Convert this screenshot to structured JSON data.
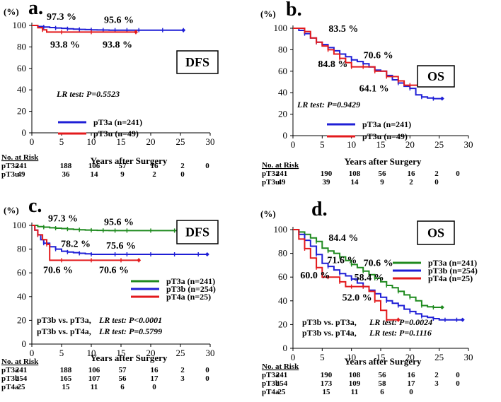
{
  "chart_data": [
    {
      "letter": "a.",
      "type": "line",
      "title": "DFS",
      "ylabel": "(%)",
      "xlabel": "Years after Surgery",
      "xlim": [
        0,
        30
      ],
      "ylim": [
        0,
        100
      ],
      "xticks": [
        "0",
        "5",
        "10",
        "15",
        "20",
        "25",
        "30"
      ],
      "yticks": [
        "0",
        "20",
        "40",
        "60",
        "80",
        "100"
      ],
      "test_note": {
        "lines": [
          {
            "label": "",
            "text": "LR test: P=0.5523"
          }
        ]
      },
      "series": [
        {
          "name": "pT3a (n=241)",
          "color": "#1f1fd6",
          "x": [
            0,
            1,
            2,
            3,
            4,
            5,
            6,
            7,
            8,
            9,
            10,
            11,
            12,
            13,
            14,
            15,
            16,
            17,
            18,
            20,
            22,
            24,
            25.5
          ],
          "y": [
            100,
            99,
            98.5,
            98,
            97.6,
            97.3,
            96.9,
            96.6,
            96.3,
            96.1,
            95.9,
            95.8,
            95.7,
            95.6,
            95.6,
            95.6,
            95.6,
            95.6,
            95.6,
            95.6,
            95.6,
            95.6,
            95.6
          ]
        },
        {
          "name": "pT3u (n=49)",
          "color": "#e31a1c",
          "x": [
            0,
            1,
            1.8,
            2.5,
            5,
            8,
            10,
            15,
            17.5
          ],
          "y": [
            100,
            97.9,
            95.9,
            93.8,
            93.8,
            93.8,
            93.8,
            93.8,
            93.8
          ]
        }
      ],
      "annotations": [
        {
          "text": "97.3 %",
          "x": 5,
          "y": 97.3,
          "dx": 0,
          "dy": -12,
          "color": "#1f1fd6"
        },
        {
          "text": "95.6 %",
          "x": 15,
          "y": 95.6,
          "dx": -3,
          "dy": -10,
          "color": "#1f1fd6"
        },
        {
          "text": "93.8 %",
          "x": 5,
          "y": 93.8,
          "dx": 5,
          "dy": 22,
          "color": "#e31a1c"
        },
        {
          "text": "93.8 %",
          "x": 15,
          "y": 93.8,
          "dx": -5,
          "dy": 22,
          "color": "#e31a1c"
        }
      ],
      "risk_table": {
        "header": "No. at Risk",
        "rows": [
          {
            "label": "pT3a",
            "values": [
              "241",
              "188",
              "106",
              "57",
              "16",
              "2",
              "0"
            ]
          },
          {
            "label": "pT3u",
            "values": [
              "49",
              "36",
              "14",
              "9",
              "2",
              "0"
            ]
          }
        ]
      }
    },
    {
      "letter": "b.",
      "type": "line",
      "title": "OS",
      "ylabel": "(%)",
      "xlabel": "Years after Surgery",
      "xlim": [
        0,
        30
      ],
      "ylim": [
        0,
        100
      ],
      "xticks": [
        "0",
        "5",
        "10",
        "15",
        "20",
        "25",
        "30"
      ],
      "yticks": [
        "0",
        "20",
        "40",
        "60",
        "80",
        "100"
      ],
      "test_note": {
        "lines": [
          {
            "label": "",
            "text": "LR test: P=0.9429"
          }
        ]
      },
      "series": [
        {
          "name": "pT3a (n=241)",
          "color": "#1f1fd6",
          "x": [
            0,
            1,
            2,
            3,
            4,
            5,
            6,
            7,
            8,
            9,
            10,
            11,
            12,
            13,
            14,
            15,
            16,
            17,
            18,
            19,
            20,
            21,
            22,
            23,
            24,
            25.5
          ],
          "y": [
            100,
            98,
            95,
            91,
            87,
            84.8,
            82,
            79,
            76,
            73.5,
            70.6,
            69,
            67,
            64,
            61,
            60,
            56,
            52,
            49,
            46,
            44,
            38,
            36,
            35,
            34.5,
            34.5
          ]
        },
        {
          "name": "pT3u (n=49)",
          "color": "#e31a1c",
          "x": [
            0,
            1,
            2,
            3,
            4,
            5,
            6,
            7,
            8,
            9,
            10,
            11,
            12,
            13,
            14,
            15,
            16,
            17,
            18,
            19,
            20,
            21.5
          ],
          "y": [
            100,
            100,
            97,
            91,
            87,
            83.5,
            80,
            76,
            72,
            68,
            64.1,
            64.1,
            64.1,
            64.1,
            60,
            60,
            55,
            55,
            51,
            47,
            47,
            47
          ]
        }
      ],
      "annotations": [
        {
          "text": "83.5 %",
          "x": 5,
          "y": 83.5,
          "dx": 30,
          "dy": -20,
          "color": "#e31a1c"
        },
        {
          "text": "70.6 %",
          "x": 10,
          "y": 70.6,
          "dx": 38,
          "dy": -2,
          "color": "#1f1fd6"
        },
        {
          "text": "84.8 %",
          "x": 5,
          "y": 84.8,
          "dx": 15,
          "dy": 32,
          "color": "#1f1fd6"
        },
        {
          "text": "64.1 %",
          "x": 10,
          "y": 64.1,
          "dx": 32,
          "dy": 35,
          "color": "#e31a1c"
        }
      ],
      "risk_table": {
        "header": "No. at Risk",
        "rows": [
          {
            "label": "pT3a",
            "values": [
              "241",
              "190",
              "108",
              "56",
              "16",
              "2",
              "0"
            ]
          },
          {
            "label": "pT3u",
            "values": [
              "49",
              "39",
              "14",
              "9",
              "2",
              "0"
            ]
          }
        ]
      }
    },
    {
      "letter": "c.",
      "type": "line",
      "title": "DFS",
      "ylabel": "(%)",
      "xlabel": "Years after Surgery",
      "xlim": [
        0,
        30
      ],
      "ylim": [
        0,
        100
      ],
      "xticks": [
        "0",
        "5",
        "10",
        "15",
        "20",
        "25",
        "30"
      ],
      "yticks": [
        "0",
        "20",
        "40",
        "60",
        "80",
        "100"
      ],
      "test_note": {
        "lines": [
          {
            "label": "pT3b vs. pT3a,",
            "text": "LR test: P<0.0001"
          },
          {
            "label": "pT3b vs. pT4a,",
            "text": "LR test: P=0.5799"
          }
        ]
      },
      "series": [
        {
          "name": "pT3a (n=241)",
          "color": "#1f8a1f",
          "x": [
            0,
            1,
            2,
            3,
            4,
            5,
            6,
            7,
            8,
            9,
            10,
            11,
            12,
            13,
            14,
            15,
            16,
            18,
            20,
            22,
            24,
            25.5
          ],
          "y": [
            100,
            99,
            98.5,
            98,
            97.6,
            97.3,
            96.9,
            96.6,
            96.3,
            96.1,
            95.9,
            95.8,
            95.7,
            95.6,
            95.6,
            95.6,
            95.6,
            95.6,
            95.6,
            95.6,
            95.6,
            95.6
          ]
        },
        {
          "name": "pT3b (n=254)",
          "color": "#1f1fd6",
          "x": [
            0,
            0.5,
            1,
            1.5,
            2,
            3,
            4,
            5,
            6,
            7,
            8,
            9,
            10,
            12,
            14,
            15,
            16,
            18,
            20,
            22,
            24,
            26,
            28,
            29.5
          ],
          "y": [
            100,
            96,
            92,
            88,
            85,
            82,
            80,
            78.2,
            77.5,
            77,
            76.5,
            76,
            75.6,
            75.6,
            75.6,
            75.6,
            75.6,
            75.6,
            75.6,
            75.6,
            75.6,
            75.6,
            75.6,
            75.6
          ]
        },
        {
          "name": "pT4a (n=25)",
          "color": "#e31a1c",
          "x": [
            0,
            0.5,
            1,
            1.8,
            2.5,
            3,
            5,
            8,
            10,
            12,
            15,
            16,
            18
          ],
          "y": [
            100,
            96,
            92,
            88,
            84,
            70.6,
            70.6,
            70.6,
            70.6,
            70.6,
            70.6,
            70.6,
            70.6
          ]
        }
      ],
      "annotations": [
        {
          "text": "97.3 %",
          "x": 5,
          "y": 97.3,
          "dx": 2,
          "dy": -10,
          "color": "#1f8a1f"
        },
        {
          "text": "95.6 %",
          "x": 15,
          "y": 95.6,
          "dx": -3,
          "dy": -8,
          "color": "#1f8a1f"
        },
        {
          "text": "78.2 %",
          "x": 5,
          "y": 78.2,
          "dx": 20,
          "dy": -6,
          "color": "#1f1fd6"
        },
        {
          "text": "75.6 %",
          "x": 15,
          "y": 75.6,
          "dx": 0,
          "dy": -8,
          "color": "#1f1fd6"
        },
        {
          "text": "70.6 %",
          "x": 5,
          "y": 70.6,
          "dx": -5,
          "dy": 18,
          "color": "#e31a1c"
        },
        {
          "text": "70.6 %",
          "x": 15,
          "y": 70.6,
          "dx": -10,
          "dy": 18,
          "color": "#e31a1c"
        }
      ],
      "risk_table": {
        "header": "No. at Risk",
        "rows": [
          {
            "label": "pT3a",
            "values": [
              "241",
              "188",
              "106",
              "57",
              "16",
              "2",
              "0"
            ]
          },
          {
            "label": "pT3b",
            "values": [
              "254",
              "165",
              "107",
              "56",
              "17",
              "3",
              "0"
            ]
          },
          {
            "label": "pT4a",
            "values": [
              "25",
              "15",
              "11",
              "6",
              "0"
            ]
          }
        ]
      }
    },
    {
      "letter": "d.",
      "type": "line",
      "title": "OS",
      "ylabel": "(%)",
      "xlabel": "Years after Surgery",
      "xlim": [
        0,
        30
      ],
      "ylim": [
        0,
        100
      ],
      "xticks": [
        "0",
        "5",
        "10",
        "15",
        "20",
        "25",
        "30"
      ],
      "yticks": [
        "0",
        "20",
        "40",
        "60",
        "80",
        "100"
      ],
      "test_note": {
        "lines": [
          {
            "label": "pT3b vs. pT3a,",
            "text": "LR test: P=0.0024"
          },
          {
            "label": "pT3b vs. pT4a,",
            "text": "LR test: P=0.1116"
          }
        ]
      },
      "series": [
        {
          "name": "pT3a (n=241)",
          "color": "#1f8a1f",
          "x": [
            0,
            1,
            2,
            3,
            4,
            5,
            6,
            7,
            8,
            9,
            10,
            11,
            12,
            13,
            14,
            15,
            16,
            17,
            18,
            19,
            20,
            21,
            22,
            23,
            24,
            25.5
          ],
          "y": [
            100,
            98,
            96,
            93,
            90,
            84.4,
            82,
            80,
            77,
            74,
            70.6,
            68,
            65,
            62,
            59,
            56,
            53,
            51,
            48,
            45,
            43,
            40,
            36,
            35,
            34.5,
            34.5
          ]
        },
        {
          "name": "pT3b (n=254)",
          "color": "#1f1fd6",
          "x": [
            0,
            1,
            2,
            3,
            4,
            5,
            6,
            7,
            8,
            9,
            10,
            11,
            12,
            13,
            14,
            15,
            16,
            17,
            18,
            19,
            20,
            21,
            22,
            23,
            24,
            25,
            26,
            27,
            28,
            29
          ],
          "y": [
            100,
            96,
            91,
            86,
            79,
            71.6,
            69,
            66,
            63,
            61,
            58.4,
            55,
            52,
            49,
            46,
            43,
            40,
            38,
            36,
            33,
            31,
            29,
            27,
            26,
            25,
            24,
            24,
            24,
            24,
            24
          ]
        },
        {
          "name": "pT4a (n=25)",
          "color": "#e31a1c",
          "x": [
            0,
            1,
            2,
            3,
            4,
            5,
            6,
            7,
            8,
            9,
            10,
            11,
            12,
            13,
            14,
            15,
            16,
            17,
            18
          ],
          "y": [
            100,
            92,
            84,
            76,
            68,
            60.0,
            60,
            60,
            56,
            52,
            52.0,
            52,
            52,
            48,
            40,
            32,
            24,
            24,
            24
          ]
        }
      ],
      "annotations": [
        {
          "text": "84.4 %",
          "x": 5,
          "y": 84.4,
          "dx": 30,
          "dy": -10,
          "color": "#1f8a1f"
        },
        {
          "text": "70.6 %",
          "x": 10,
          "y": 70.6,
          "dx": 38,
          "dy": 2,
          "color": "#1f8a1f"
        },
        {
          "text": "71.6 %",
          "x": 5,
          "y": 71.6,
          "dx": 28,
          "dy": 0,
          "color": "#1f1fd6"
        },
        {
          "text": "58.4 %",
          "x": 10,
          "y": 58.4,
          "dx": 25,
          "dy": 2,
          "color": "#1f1fd6"
        },
        {
          "text": "60.0 %",
          "x": 5,
          "y": 60.0,
          "dx": -10,
          "dy": 2,
          "color": "#e31a1c"
        },
        {
          "text": "52.0 %",
          "x": 10,
          "y": 52.0,
          "dx": 8,
          "dy": 20,
          "color": "#e31a1c"
        }
      ],
      "risk_table": {
        "header": "No. at Risk",
        "rows": [
          {
            "label": "pT3a",
            "values": [
              "241",
              "190",
              "108",
              "56",
              "16",
              "2",
              "0"
            ]
          },
          {
            "label": "pT3b",
            "values": [
              "254",
              "173",
              "109",
              "58",
              "17",
              "3",
              "0"
            ]
          },
          {
            "label": "pT4a",
            "values": [
              "25",
              "15",
              "11",
              "6",
              "0"
            ]
          }
        ]
      }
    }
  ]
}
